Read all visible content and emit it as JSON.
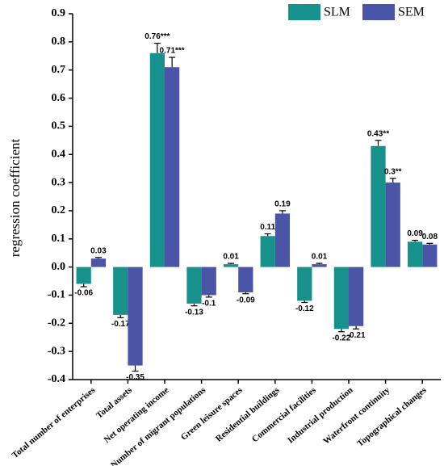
{
  "chart_data": {
    "type": "bar",
    "y_label": "regression coefficient",
    "categories": [
      "Total number of enterprises",
      "Total assets",
      "Net operating income",
      "Number of migrant populations",
      "Green leisure spaces",
      "Residential buildings",
      "Commercial facilities",
      "Industrial production",
      "Waterfront continuity",
      "Topographical changes"
    ],
    "series": [
      {
        "name": "SLM",
        "color": "#17918c",
        "values": [
          -0.06,
          -0.17,
          0.76,
          -0.13,
          0.01,
          0.11,
          -0.12,
          -0.22,
          0.43,
          0.09
        ],
        "value_labels": [
          "-0.06",
          "-0.17",
          "0.76***",
          "-0.13",
          "0.01",
          "0.11",
          "-0.12",
          "-0.22",
          "0.43**",
          "0.09"
        ],
        "errors": [
          0.01,
          0.01,
          0.035,
          0.008,
          0.003,
          0.008,
          0.006,
          0.01,
          0.02,
          0.005
        ]
      },
      {
        "name": "SEM",
        "color": "#4b55a8",
        "values": [
          0.03,
          -0.35,
          0.71,
          -0.1,
          -0.09,
          0.19,
          0.01,
          -0.21,
          0.3,
          0.08
        ],
        "value_labels": [
          "0.03",
          "-0.35",
          "0.71***",
          "-0.1",
          "-0.09",
          "0.19",
          "0.01",
          "-0.21",
          "0.3**",
          "0.08"
        ],
        "errors": [
          0.004,
          0.02,
          0.035,
          0.007,
          0.005,
          0.01,
          0.003,
          0.01,
          0.015,
          0.004
        ]
      }
    ],
    "ylim": [
      -0.4,
      0.9
    ],
    "yticks": [
      0.9,
      0.8,
      0.7,
      0.6,
      0.5,
      0.4,
      0.3,
      0.2,
      0.1,
      {
        "value": 0,
        "label": "0.0"
      },
      -0.1,
      -0.2,
      -0.3,
      -0.4
    ],
    "legend": "top-right"
  }
}
